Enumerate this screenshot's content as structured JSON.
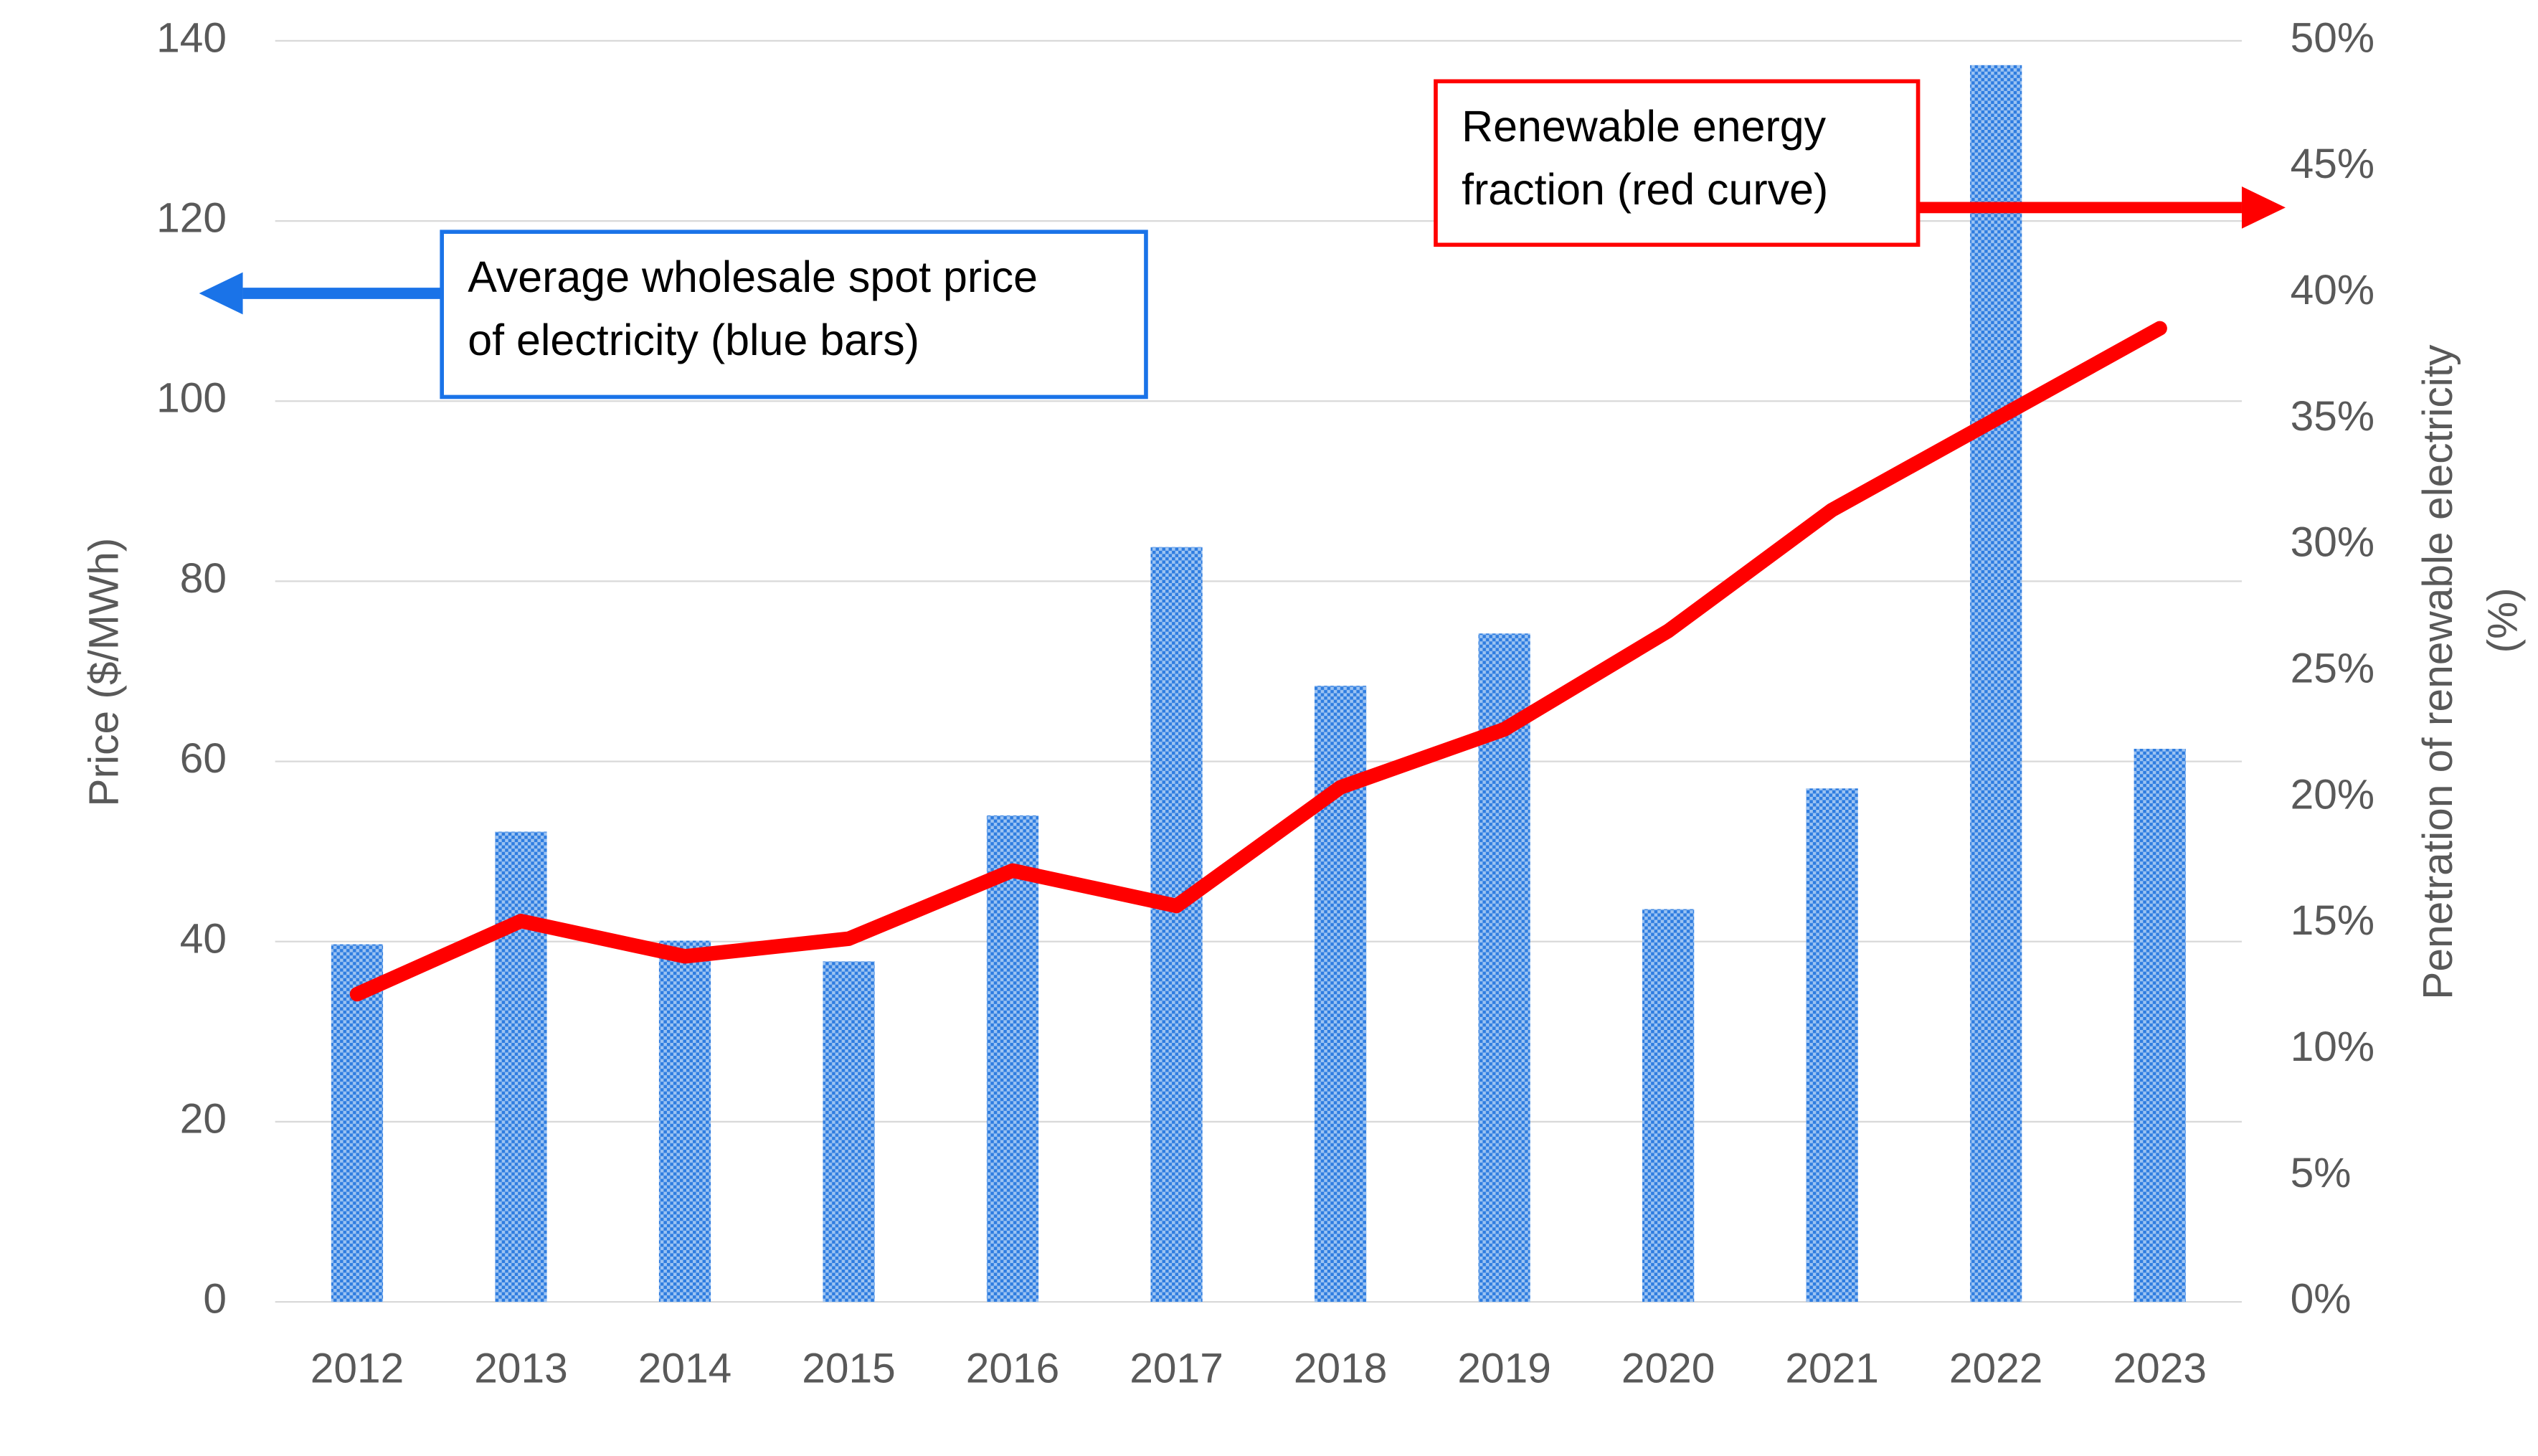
{
  "chart_data": {
    "type": "bar-line",
    "categories": [
      "2012",
      "2013",
      "2014",
      "2015",
      "2016",
      "2017",
      "2018",
      "2019",
      "2020",
      "2021",
      "2022",
      "2023"
    ],
    "series": [
      {
        "type": "bar",
        "color": "#3b82e0",
        "values": [
          39.7,
          52.2,
          40.1,
          37.8,
          54.0,
          83.8,
          68.4,
          74.2,
          43.6,
          57.0,
          137.3,
          61.4
        ]
      },
      {
        "type": "line",
        "axis": "y2",
        "color": "#ff0000",
        "values": [
          12.2,
          15.1,
          13.7,
          14.4,
          17.1,
          15.7,
          20.4,
          22.7,
          26.6,
          31.4,
          35.0,
          38.6
        ]
      }
    ],
    "ylabel": "Price ($/MWh)",
    "y2label": [
      "Penetration of renewable electricity",
      "(%)"
    ],
    "ylim": [
      0,
      140
    ],
    "yticks": [
      0,
      20,
      40,
      60,
      80,
      100,
      120,
      140
    ],
    "y2lim": [
      0,
      50
    ],
    "y2ticks": [
      {
        "value": 0,
        "label": "0%"
      },
      {
        "value": 5,
        "label": "5%"
      },
      {
        "value": 10,
        "label": "10%"
      },
      {
        "value": 15,
        "label": "15%"
      },
      {
        "value": 20,
        "label": "20%"
      },
      {
        "value": 25,
        "label": "25%"
      },
      {
        "value": 30,
        "label": "30%"
      },
      {
        "value": 35,
        "label": "35%"
      },
      {
        "value": 40,
        "label": "40%"
      },
      {
        "value": 45,
        "label": "45%"
      },
      {
        "value": 50,
        "label": "50%"
      }
    ],
    "grid": true,
    "annotations": [
      {
        "lines": [
          "Average wholesale spot price",
          "of electricity (blue bars)"
        ],
        "color": "#1a73e8"
      },
      {
        "lines": [
          "Renewable energy",
          "fraction (red curve)"
        ],
        "color": "#ff0000"
      }
    ]
  }
}
